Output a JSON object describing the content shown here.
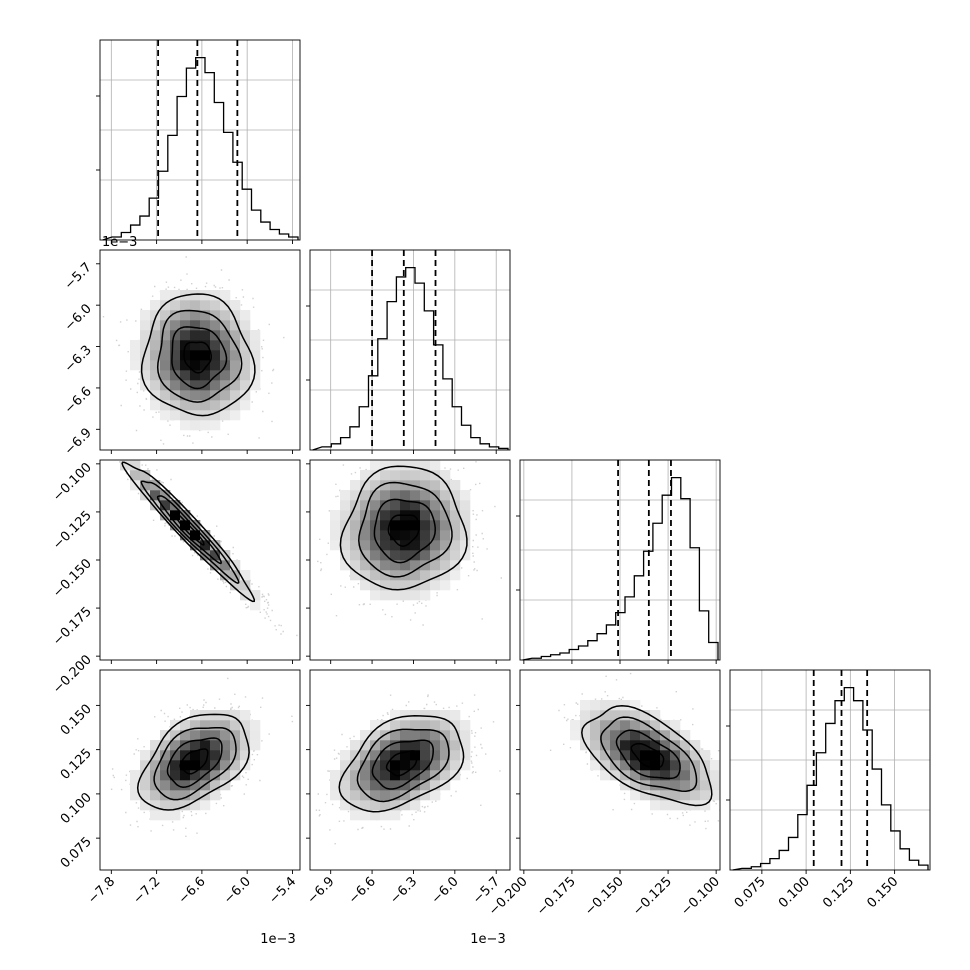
{
  "chart_data": {
    "type": "corner",
    "n_params": 4,
    "params": [
      {
        "ticks": [
          -7.8,
          -7.2,
          -6.6,
          -6.0,
          -5.4
        ],
        "tick_labels": [
          "−7.8",
          "−7.2",
          "−6.6",
          "−6.0",
          "−5.4"
        ],
        "range": [
          -7.95,
          -5.3
        ],
        "offset_label": "1e−3"
      },
      {
        "ticks": [
          -6.9,
          -6.6,
          -6.3,
          -6.0,
          -5.7
        ],
        "tick_labels": [
          "−6.9",
          "−6.6",
          "−6.3",
          "−6.0",
          "−5.7"
        ],
        "range": [
          -7.05,
          -5.6
        ],
        "offset_label": "1e−3"
      },
      {
        "ticks": [
          -0.2,
          -0.175,
          -0.15,
          -0.125,
          -0.1
        ],
        "tick_labels": [
          "−0.200",
          "−0.175",
          "−0.150",
          "−0.125",
          "−0.100"
        ],
        "range": [
          -0.202,
          -0.098
        ],
        "offset_label": ""
      },
      {
        "ticks": [
          0.075,
          0.1,
          0.125,
          0.15
        ],
        "tick_labels": [
          "0.075",
          "0.100",
          "0.125",
          "0.150"
        ],
        "range": [
          0.057,
          0.17
        ],
        "offset_label": ""
      }
    ],
    "quantiles": [
      [
        -7.18,
        -6.66,
        -6.13
      ],
      [
        -6.6,
        -6.37,
        -6.14
      ],
      [
        -0.151,
        -0.135,
        -0.1235
      ],
      [
        0.1043,
        0.12,
        0.1345
      ]
    ],
    "histograms": [
      {
        "counts": [
          2,
          5,
          10,
          16,
          28,
          46,
          70,
          96,
          115,
          122,
          112,
          92,
          72,
          52,
          34,
          20,
          12,
          7,
          4,
          2
        ]
      },
      {
        "counts": [
          2,
          4,
          8,
          15,
          28,
          48,
          72,
          96,
          112,
          118,
          108,
          90,
          68,
          46,
          28,
          16,
          8,
          4,
          2,
          1
        ]
      },
      {
        "counts": [
          1,
          2,
          3,
          4,
          6,
          8,
          11,
          15,
          20,
          27,
          36,
          48,
          62,
          78,
          94,
          104,
          92,
          64,
          28,
          10
        ]
      },
      {
        "counts": [
          1,
          2,
          4,
          7,
          12,
          20,
          34,
          52,
          72,
          90,
          104,
          112,
          104,
          86,
          62,
          40,
          24,
          13,
          6,
          3
        ]
      }
    ],
    "pairs": [
      {
        "row": 1,
        "col": 0,
        "mean": [
          -6.66,
          -6.37
        ],
        "sd": [
          0.36,
          0.22
        ],
        "rho": -0.05
      },
      {
        "row": 2,
        "col": 0,
        "mean": [
          -6.78,
          -0.1335
        ],
        "sd": [
          0.42,
          0.0175
        ],
        "rho": -0.97
      },
      {
        "row": 2,
        "col": 1,
        "mean": [
          -6.37,
          -0.134
        ],
        "sd": [
          0.22,
          0.016
        ],
        "rho": 0.05
      },
      {
        "row": 3,
        "col": 0,
        "mean": [
          -6.7,
          0.1185
        ],
        "sd": [
          0.36,
          0.0135
        ],
        "rho": 0.45
      },
      {
        "row": 3,
        "col": 1,
        "mean": [
          -6.38,
          0.1175
        ],
        "sd": [
          0.22,
          0.0135
        ],
        "rho": 0.4
      },
      {
        "row": 3,
        "col": 2,
        "mean": [
          -0.1355,
          0.1215
        ],
        "sd": [
          0.0165,
          0.0135
        ],
        "rho": -0.55
      }
    ],
    "grid": true
  }
}
